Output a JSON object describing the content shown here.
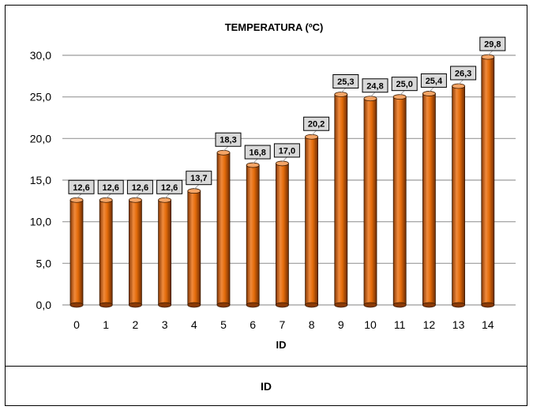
{
  "chart_data": {
    "type": "bar",
    "title": "TEMPERATURA (ºC)",
    "xlabel": "ID",
    "ylabel": "",
    "categories": [
      "0",
      "1",
      "2",
      "3",
      "4",
      "5",
      "6",
      "7",
      "8",
      "9",
      "10",
      "11",
      "12",
      "13",
      "14"
    ],
    "values": [
      12.6,
      12.6,
      12.6,
      12.6,
      13.7,
      18.3,
      16.8,
      17.0,
      20.2,
      25.3,
      24.8,
      25.0,
      25.4,
      26.3,
      29.8
    ],
    "data_labels": [
      "12,6",
      "12,6",
      "12,6",
      "12,6",
      "13,7",
      "18,3",
      "16,8",
      "17,0",
      "20,2",
      "25,3",
      "24,8",
      "25,0",
      "25,4",
      "26,3",
      "29,8"
    ],
    "ylim": [
      0,
      30
    ],
    "yticks": [
      0,
      5,
      10,
      15,
      20,
      25,
      30
    ],
    "ytick_labels": [
      "0,0",
      "5,0",
      "10,0",
      "15,0",
      "20,0",
      "25,0",
      "30,0"
    ],
    "grid": true,
    "bar_color": "#E46C0A",
    "bar_highlight": "#F79646",
    "bar_shadow": "#7F3300",
    "label_fill": "#D9D9D9"
  },
  "footer": {
    "label": "ID"
  }
}
